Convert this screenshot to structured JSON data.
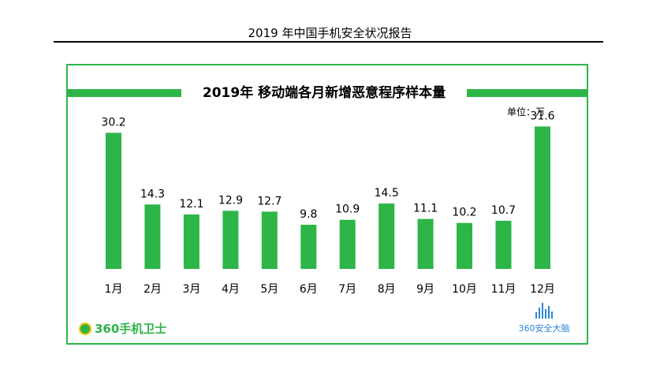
{
  "document": {
    "title": "2019 年中国手机安全状况报告"
  },
  "chart_data": {
    "type": "bar",
    "title": "2019年 移动端各月新增恶意程序样本量",
    "unit_label": "单位：万",
    "categories": [
      "1月",
      "2月",
      "3月",
      "4月",
      "5月",
      "6月",
      "7月",
      "8月",
      "9月",
      "10月",
      "11月",
      "12月"
    ],
    "values": [
      30.2,
      14.3,
      12.1,
      12.9,
      12.7,
      9.8,
      10.9,
      14.5,
      11.1,
      10.2,
      10.7,
      31.6
    ],
    "value_labels": [
      "30.2",
      "14.3",
      "12.1",
      "12.9",
      "12.7",
      "9.8",
      "10.9",
      "14.5",
      "11.1",
      "10.2",
      "10.7",
      "31.6"
    ],
    "ylim": [
      0,
      35
    ],
    "grid": false,
    "bar_color": "#2db548"
  },
  "logos": {
    "left": {
      "text": "360手机卫士",
      "color": "#2db548"
    },
    "right": {
      "text": "360安全大脑",
      "color": "#2b86d9"
    }
  }
}
